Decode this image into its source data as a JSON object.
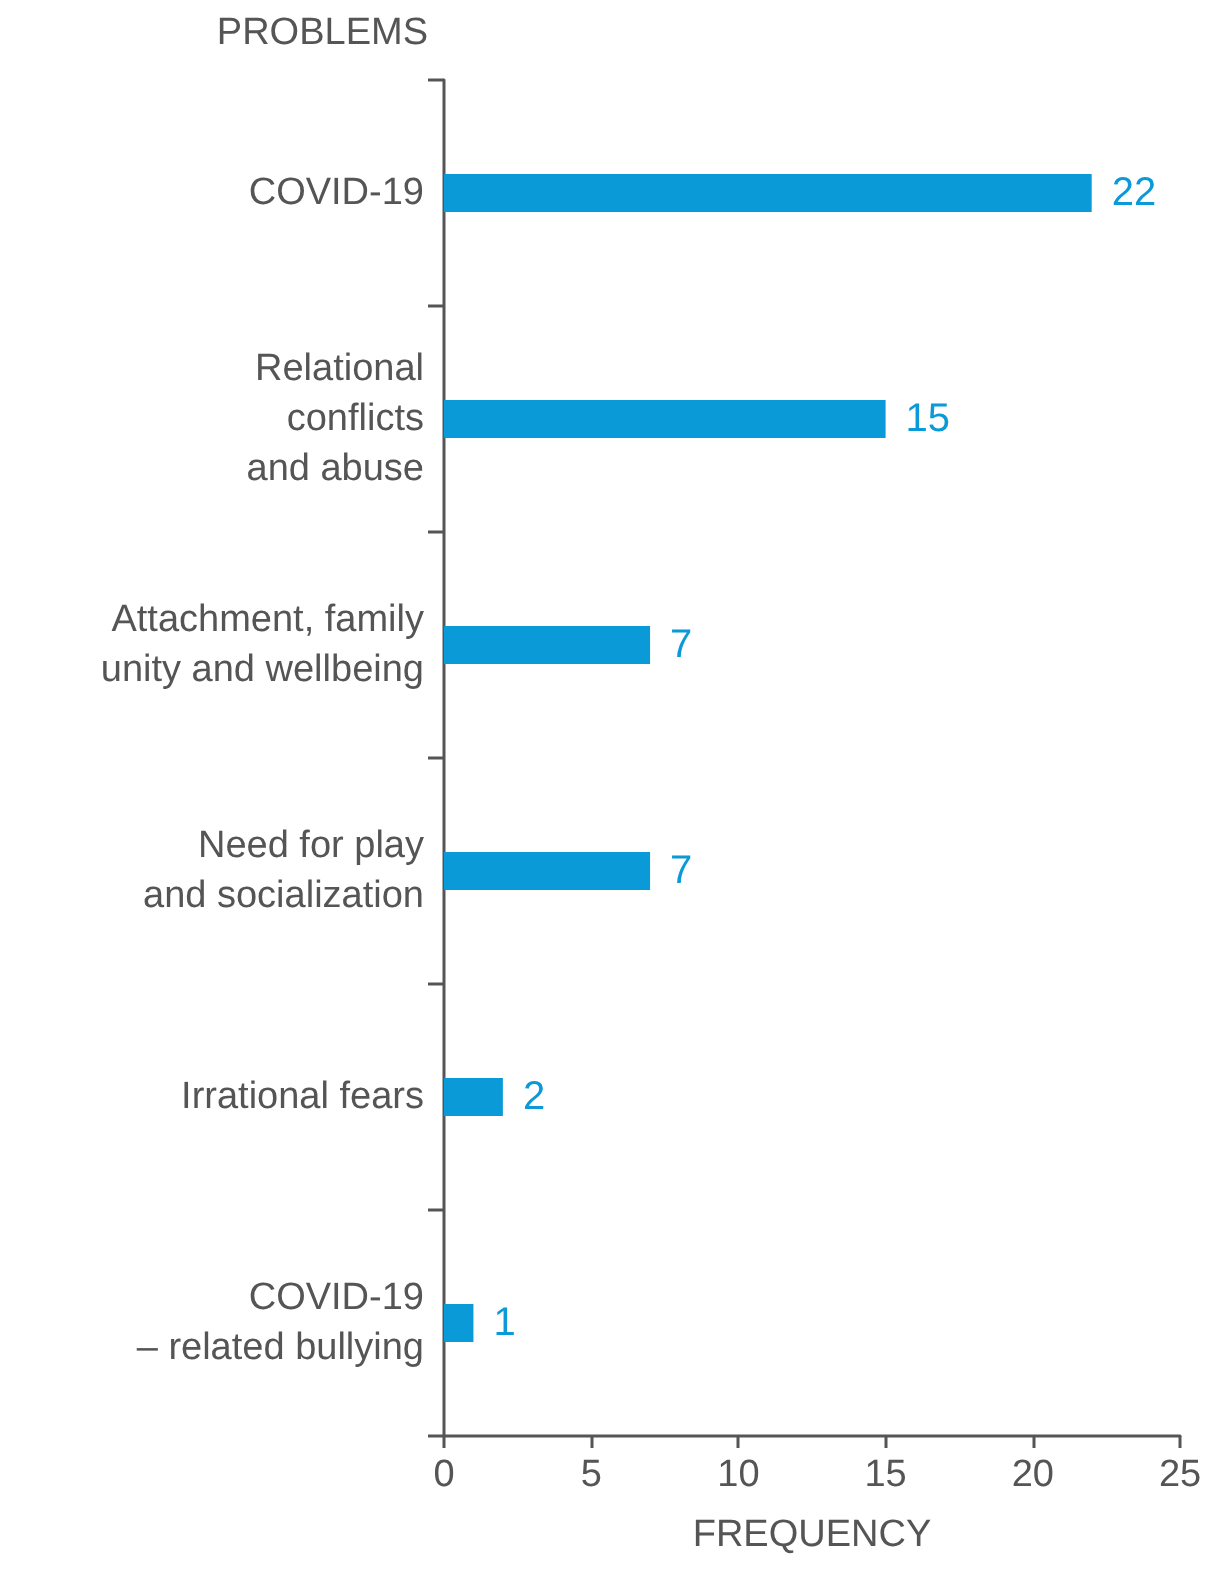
{
  "chart_data": {
    "type": "bar",
    "orientation": "horizontal",
    "ylabel": "PROBLEMS",
    "xlabel": "FREQUENCY",
    "categories": [
      "COVID-19",
      "Relational\nconflicts\nand abuse",
      "Attachment, family\nunity and wellbeing",
      "Need for play\nand socialization",
      "Irrational fears",
      "COVID-19\n– related bullying"
    ],
    "values": [
      22,
      15,
      7,
      7,
      2,
      1
    ],
    "color": "#0a9ad8",
    "xlim": [
      0,
      25
    ],
    "xticks": [
      0,
      5,
      10,
      15,
      20,
      25
    ],
    "data_labels": true
  }
}
